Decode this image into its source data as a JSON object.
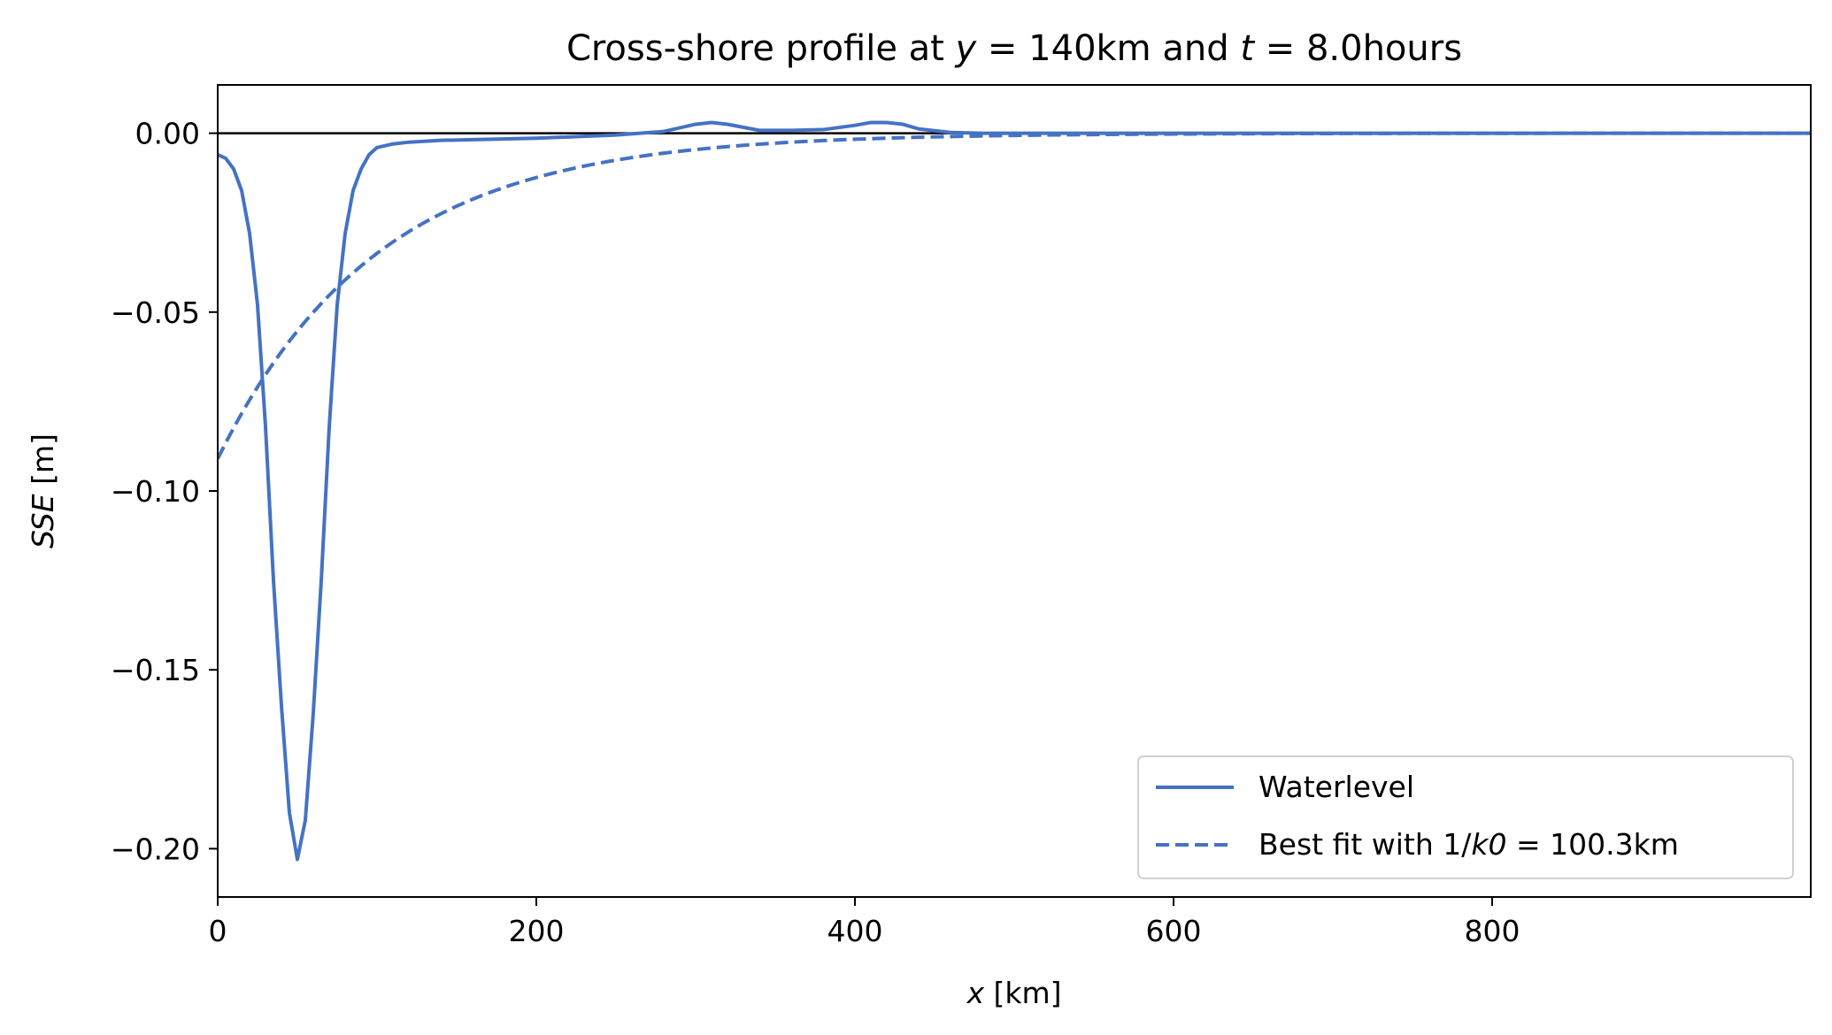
{
  "chart_data": {
    "type": "line",
    "title_parts": {
      "prefix": "Cross-shore profile at ",
      "y_symbol": "y",
      "y_value": " = 140km and ",
      "t_symbol": "t",
      "t_value": " = 8.0hours"
    },
    "xlabel": {
      "symbol": "x",
      "unit": " [km]"
    },
    "ylabel": {
      "symbol": "SSE",
      "unit": " [m]"
    },
    "xlim": [
      0,
      1000
    ],
    "ylim": [
      -0.2135,
      0.0135
    ],
    "xticks": [
      0,
      200,
      400,
      600,
      800
    ],
    "xtick_labels": [
      "0",
      "200",
      "400",
      "600",
      "800"
    ],
    "yticks": [
      0.0,
      -0.05,
      -0.1,
      -0.15,
      -0.2
    ],
    "ytick_labels": [
      "0.00",
      "−0.05",
      "−0.10",
      "−0.15",
      "−0.20"
    ],
    "grid": false,
    "zero_line": true,
    "legend_position": "lower-right",
    "colors": {
      "series": "#4472c4",
      "axis": "#000000",
      "legend_border": "#d0d0d0"
    },
    "series": [
      {
        "name": "Waterlevel",
        "style": "solid",
        "x": [
          0,
          5,
          10,
          15,
          20,
          25,
          30,
          35,
          40,
          45,
          50,
          55,
          60,
          65,
          70,
          75,
          80,
          85,
          90,
          95,
          100,
          110,
          120,
          140,
          160,
          200,
          250,
          280,
          300,
          310,
          320,
          340,
          360,
          380,
          400,
          410,
          420,
          430,
          440,
          460,
          480,
          500,
          600,
          700,
          800,
          900,
          1000
        ],
        "values": [
          -0.006,
          -0.007,
          -0.01,
          -0.016,
          -0.028,
          -0.048,
          -0.082,
          -0.125,
          -0.16,
          -0.19,
          -0.203,
          -0.192,
          -0.162,
          -0.125,
          -0.082,
          -0.048,
          -0.028,
          -0.016,
          -0.01,
          -0.006,
          -0.004,
          -0.003,
          -0.0025,
          -0.002,
          -0.0018,
          -0.0014,
          -0.0005,
          0.0005,
          0.0025,
          0.003,
          0.0025,
          0.0008,
          0.0008,
          0.001,
          0.0022,
          0.003,
          0.003,
          0.0025,
          0.0012,
          0.0002,
          0.0,
          0.0,
          0.0,
          0.0,
          0.0,
          0.0,
          0.0
        ]
      },
      {
        "name_parts": {
          "prefix": "Best fit with 1/",
          "symbol": "k0",
          "suffix": " = 100.3km"
        },
        "style": "dashed",
        "k0_inverse_km": 100.3,
        "amplitude": -0.091
      }
    ]
  }
}
